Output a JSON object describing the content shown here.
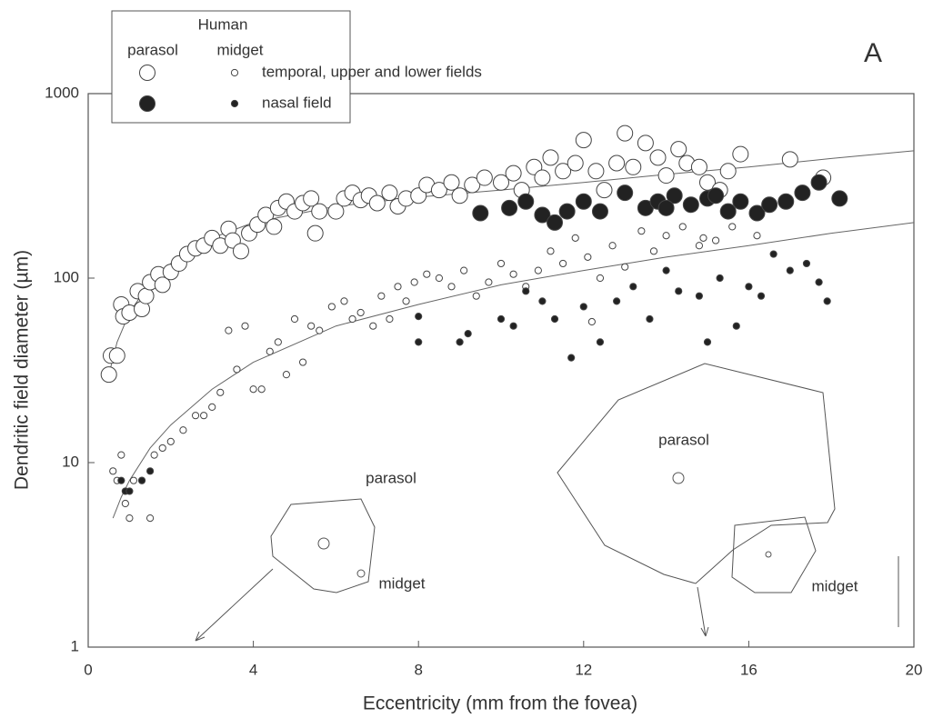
{
  "chart_data": {
    "type": "scatter",
    "panel_label": "A",
    "xlabel": "Eccentricity (mm from the fovea)",
    "ylabel": "Dendritic field diameter (µm)",
    "xlim": [
      0,
      20
    ],
    "xticks": [
      0,
      4,
      8,
      12,
      16,
      20
    ],
    "ylim": [
      1,
      1000
    ],
    "yticks": [
      1,
      10,
      100,
      1000
    ],
    "log_y": true,
    "legend": {
      "title": "Human",
      "fields": [
        "temporal, upper and lower fields",
        "nasal field"
      ]
    },
    "annotations": [
      "parasol",
      "midget",
      "parasol",
      "midget"
    ],
    "cell_types": [
      {
        "name": "parasol",
        "series": [
          {
            "color": "#ffffff",
            "x": [
              0.5,
              0.55,
              0.7,
              0.8,
              0.85,
              1.0,
              1.2,
              1.3,
              1.4,
              1.5,
              1.7,
              1.8,
              2.0,
              2.2,
              2.4,
              2.6,
              2.8,
              3.0,
              3.2,
              3.4,
              3.5,
              3.7,
              3.9,
              4.1,
              4.3,
              4.5,
              4.6,
              4.8,
              5.0,
              5.2,
              5.4,
              5.5,
              5.6,
              6.0,
              6.2,
              6.4,
              6.6,
              6.8,
              7.0,
              7.3,
              7.5,
              7.7,
              8.0,
              8.2,
              8.5,
              8.8,
              9.0,
              9.3,
              9.6,
              10.0,
              10.3,
              10.5,
              10.8,
              11.0,
              11.2,
              11.5,
              11.8,
              12.0,
              12.3,
              12.5,
              12.8,
              13.0,
              13.2,
              13.5,
              13.8,
              14.0,
              14.3,
              14.5,
              14.8,
              15.0,
              15.3,
              15.5,
              15.8,
              17.0,
              17.8
            ],
            "y": [
              30,
              38,
              38,
              72,
              62,
              65,
              85,
              68,
              80,
              95,
              105,
              92,
              108,
              120,
              135,
              145,
              150,
              165,
              150,
              185,
              160,
              140,
              175,
              195,
              220,
              190,
              240,
              260,
              230,
              255,
              270,
              175,
              230,
              230,
              270,
              290,
              265,
              280,
              255,
              290,
              245,
              270,
              280,
              320,
              300,
              330,
              280,
              320,
              350,
              330,
              370,
              300,
              400,
              350,
              450,
              380,
              420,
              560,
              380,
              300,
              420,
              610,
              400,
              540,
              450,
              360,
              500,
              420,
              400,
              330,
              300,
              380,
              470,
              440,
              350
            ]
          },
          {
            "color": "#222222",
            "x": [
              9.5,
              10.2,
              10.6,
              11.0,
              11.3,
              11.6,
              12.0,
              12.4,
              13.0,
              13.5,
              13.8,
              14.2,
              14.6,
              15.0,
              15.5,
              15.8,
              16.2,
              16.5,
              16.9,
              17.3,
              17.7,
              18.2,
              15.2,
              14.0
            ],
            "y": [
              225,
              240,
              260,
              220,
              200,
              230,
              260,
              230,
              290,
              240,
              260,
              280,
              250,
              270,
              230,
              260,
              225,
              250,
              260,
              290,
              330,
              270,
              280,
              240
            ]
          }
        ],
        "fit": {
          "x": [
            0.5,
            0.7,
            1,
            1.5,
            2,
            3,
            4,
            6,
            8,
            10,
            12,
            14,
            16,
            18,
            20
          ],
          "y": [
            30,
            45,
            65,
            95,
            120,
            165,
            200,
            245,
            275,
            300,
            330,
            365,
            400,
            445,
            490
          ]
        }
      },
      {
        "name": "midget",
        "series": [
          {
            "color": "#ffffff",
            "x": [
              0.6,
              0.7,
              0.8,
              0.9,
              1.0,
              1.1,
              1.3,
              1.5,
              1.6,
              1.8,
              2.0,
              2.3,
              2.6,
              2.8,
              3.0,
              3.2,
              3.4,
              3.6,
              3.8,
              4.0,
              4.2,
              4.4,
              4.6,
              4.8,
              5.0,
              5.2,
              5.4,
              5.6,
              5.9,
              6.2,
              6.4,
              6.6,
              6.9,
              7.1,
              7.3,
              7.5,
              7.7,
              7.9,
              8.2,
              8.5,
              8.8,
              9.1,
              9.4,
              9.7,
              10.0,
              10.3,
              10.6,
              10.9,
              11.2,
              11.5,
              11.8,
              12.1,
              12.4,
              12.7,
              13.0,
              13.4,
              13.7,
              14.0,
              14.4,
              14.8,
              15.2,
              15.6,
              16.2,
              12.2,
              14.9
            ],
            "y": [
              9,
              8,
              11,
              6,
              5,
              8,
              8,
              5,
              11,
              12,
              13,
              15,
              18,
              18,
              20,
              24,
              52,
              32,
              55,
              25,
              25,
              40,
              45,
              30,
              60,
              35,
              55,
              52,
              70,
              75,
              60,
              65,
              55,
              80,
              60,
              90,
              75,
              95,
              105,
              100,
              90,
              110,
              80,
              95,
              120,
              105,
              90,
              110,
              140,
              120,
              165,
              130,
              100,
              150,
              115,
              180,
              140,
              170,
              190,
              150,
              160,
              190,
              170,
              58,
              165
            ]
          },
          {
            "color": "#222222",
            "x": [
              0.8,
              0.9,
              1.0,
              1.3,
              1.5,
              8.0,
              8.0,
              9.0,
              9.2,
              10.0,
              10.3,
              10.6,
              11.0,
              11.3,
              11.7,
              12.0,
              12.4,
              12.8,
              13.2,
              13.6,
              14.0,
              14.3,
              14.8,
              15.0,
              15.3,
              15.7,
              16.0,
              16.3,
              16.6,
              17.0,
              17.4,
              17.7,
              17.9
            ],
            "y": [
              8,
              7,
              7,
              8,
              9,
              62,
              45,
              45,
              50,
              60,
              55,
              85,
              75,
              60,
              37,
              70,
              45,
              75,
              90,
              60,
              110,
              85,
              80,
              45,
              100,
              55,
              90,
              80,
              135,
              110,
              120,
              95,
              75
            ]
          }
        ],
        "fit": {
          "x": [
            0.6,
            0.8,
            1,
            1.5,
            2,
            3,
            4,
            6,
            8,
            10,
            12,
            14,
            16,
            18,
            20
          ],
          "y": [
            5,
            6.5,
            8,
            12,
            16,
            25,
            35,
            55,
            72,
            92,
            110,
            130,
            150,
            175,
            200
          ]
        }
      }
    ]
  }
}
